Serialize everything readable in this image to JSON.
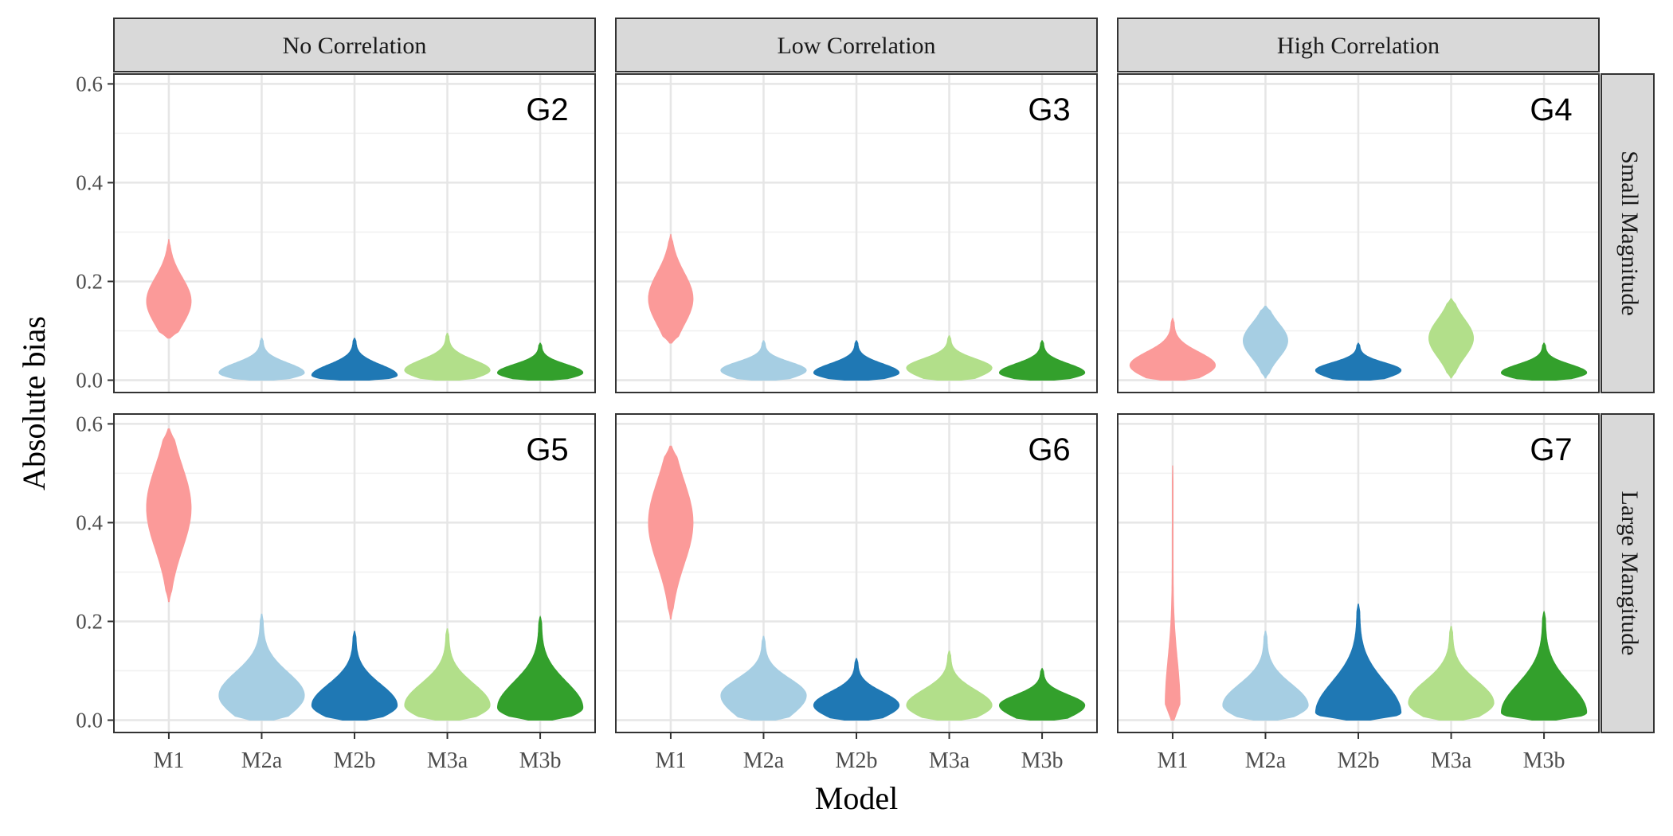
{
  "chart_data": {
    "type": "violin",
    "xlabel": "Model",
    "ylabel": "Absolute bias",
    "column_facets": [
      "No Correlation",
      "Low Correlation",
      "High Correlation"
    ],
    "row_facets": [
      "Small Magnitude",
      "Large Mangitude"
    ],
    "categories": [
      "M1",
      "M2a",
      "M2b",
      "M3a",
      "M3b"
    ],
    "ylim": [
      -0.025,
      0.62
    ],
    "yticks": [
      0.0,
      0.2,
      0.4,
      0.6
    ],
    "ytick_labels": [
      "0.0",
      "0.2",
      "0.4",
      "0.6"
    ],
    "grid": true,
    "colors": {
      "M1": "#fb9a99",
      "M2a": "#a6cee3",
      "M2b": "#1f78b4",
      "M3a": "#b2df8a",
      "M3b": "#33a02c"
    },
    "panels": [
      {
        "label": "G2",
        "col": 0,
        "row": 0,
        "violins": {
          "M1": {
            "min": 0.085,
            "max": 0.285,
            "mode": 0.16,
            "shape": "spindle"
          },
          "M2a": {
            "min": 0.0,
            "max": 0.085,
            "mode": 0.015,
            "shape": "skew"
          },
          "M2b": {
            "min": 0.0,
            "max": 0.085,
            "mode": 0.01,
            "shape": "skew"
          },
          "M3a": {
            "min": 0.0,
            "max": 0.095,
            "mode": 0.02,
            "shape": "skew"
          },
          "M3b": {
            "min": 0.0,
            "max": 0.075,
            "mode": 0.015,
            "shape": "skew"
          }
        }
      },
      {
        "label": "G3",
        "col": 1,
        "row": 0,
        "violins": {
          "M1": {
            "min": 0.075,
            "max": 0.295,
            "mode": 0.165,
            "shape": "spindle"
          },
          "M2a": {
            "min": 0.0,
            "max": 0.08,
            "mode": 0.02,
            "shape": "skew"
          },
          "M2b": {
            "min": 0.0,
            "max": 0.08,
            "mode": 0.015,
            "shape": "skew"
          },
          "M3a": {
            "min": 0.0,
            "max": 0.09,
            "mode": 0.025,
            "shape": "skew"
          },
          "M3b": {
            "min": 0.0,
            "max": 0.08,
            "mode": 0.015,
            "shape": "skew"
          }
        }
      },
      {
        "label": "G4",
        "col": 2,
        "row": 0,
        "violins": {
          "M1": {
            "min": 0.0,
            "max": 0.125,
            "mode": 0.03,
            "shape": "skew"
          },
          "M2a": {
            "min": 0.005,
            "max": 0.15,
            "mode": 0.08,
            "shape": "spindle"
          },
          "M2b": {
            "min": 0.0,
            "max": 0.075,
            "mode": 0.02,
            "shape": "skew"
          },
          "M3a": {
            "min": 0.005,
            "max": 0.165,
            "mode": 0.085,
            "shape": "spindle"
          },
          "M3b": {
            "min": 0.0,
            "max": 0.075,
            "mode": 0.015,
            "shape": "skew"
          }
        }
      },
      {
        "label": "G5",
        "col": 0,
        "row": 1,
        "violins": {
          "M1": {
            "min": 0.24,
            "max": 0.59,
            "mode": 0.43,
            "shape": "spindle"
          },
          "M2a": {
            "min": 0.0,
            "max": 0.215,
            "mode": 0.05,
            "shape": "skew"
          },
          "M2b": {
            "min": 0.0,
            "max": 0.18,
            "mode": 0.03,
            "shape": "skew"
          },
          "M3a": {
            "min": 0.0,
            "max": 0.185,
            "mode": 0.03,
            "shape": "skew"
          },
          "M3b": {
            "min": 0.0,
            "max": 0.21,
            "mode": 0.025,
            "shape": "skew"
          }
        }
      },
      {
        "label": "G6",
        "col": 1,
        "row": 1,
        "violins": {
          "M1": {
            "min": 0.205,
            "max": 0.555,
            "mode": 0.4,
            "shape": "spindle"
          },
          "M2a": {
            "min": 0.0,
            "max": 0.17,
            "mode": 0.05,
            "shape": "skew"
          },
          "M2b": {
            "min": 0.0,
            "max": 0.125,
            "mode": 0.03,
            "shape": "skew"
          },
          "M3a": {
            "min": 0.0,
            "max": 0.14,
            "mode": 0.03,
            "shape": "skew"
          },
          "M3b": {
            "min": 0.0,
            "max": 0.105,
            "mode": 0.03,
            "shape": "skew"
          }
        }
      },
      {
        "label": "G7",
        "col": 2,
        "row": 1,
        "violins": {
          "M1": {
            "min": 0.0,
            "max": 0.515,
            "mode": 0.03,
            "shape": "tall"
          },
          "M2a": {
            "min": 0.0,
            "max": 0.18,
            "mode": 0.03,
            "shape": "skew"
          },
          "M2b": {
            "min": 0.0,
            "max": 0.235,
            "mode": 0.015,
            "shape": "skew"
          },
          "M3a": {
            "min": 0.0,
            "max": 0.19,
            "mode": 0.035,
            "shape": "skew"
          },
          "M3b": {
            "min": 0.0,
            "max": 0.22,
            "mode": 0.015,
            "shape": "skew"
          }
        }
      }
    ]
  }
}
